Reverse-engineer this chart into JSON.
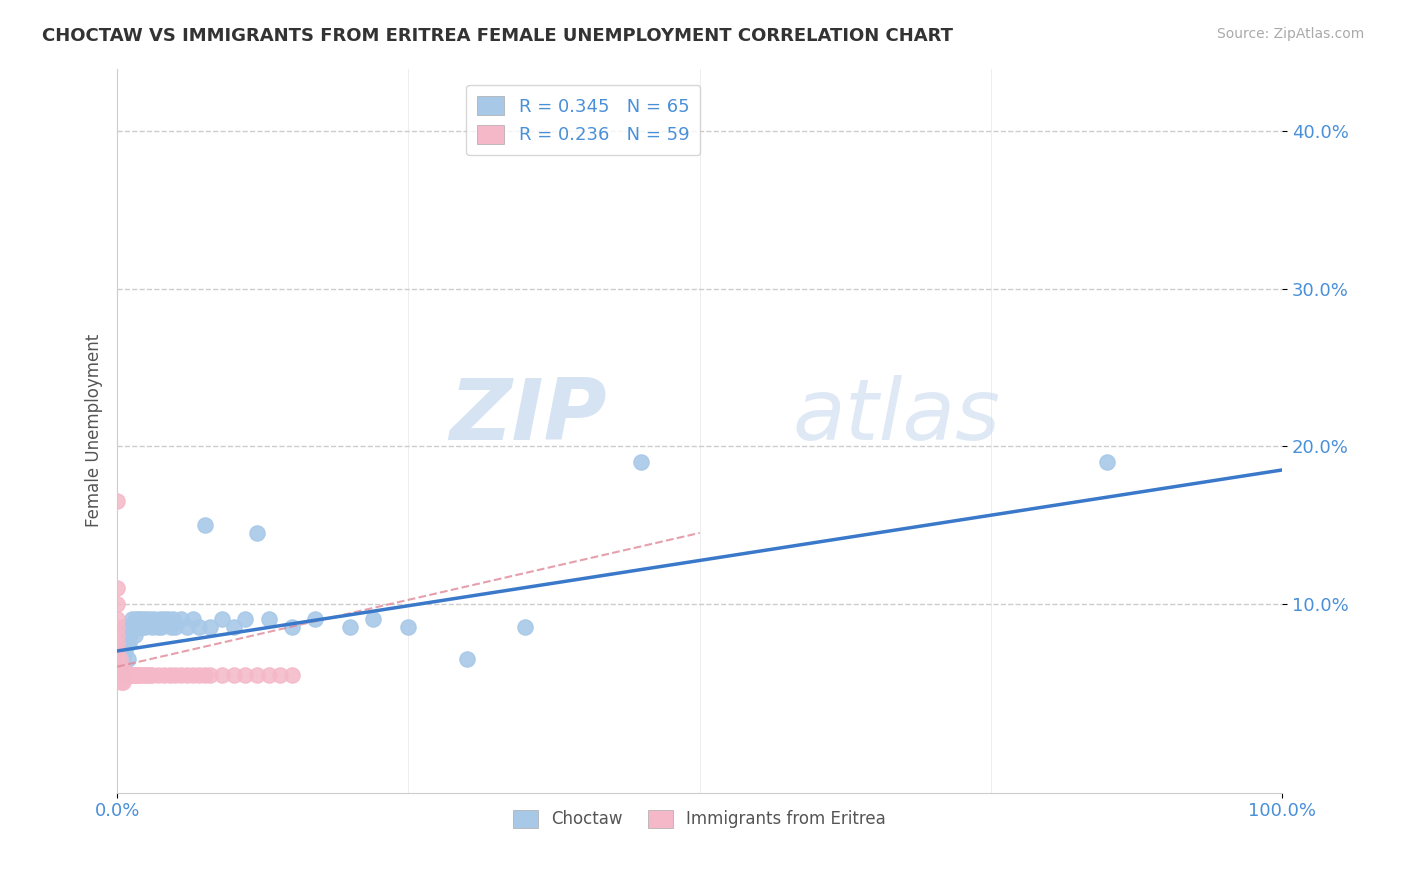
{
  "title": "CHOCTAW VS IMMIGRANTS FROM ERITREA FEMALE UNEMPLOYMENT CORRELATION CHART",
  "source": "Source: ZipAtlas.com",
  "ylabel": "Female Unemployment",
  "xmin": 0.0,
  "xmax": 1.0,
  "ymin": -0.02,
  "ymax": 0.44,
  "choctaw_R": 0.345,
  "choctaw_N": 65,
  "eritrea_R": 0.236,
  "eritrea_N": 59,
  "choctaw_color": "#a8c8e8",
  "eritrea_color": "#f4b8c8",
  "choctaw_line_color": "#3a78c9",
  "eritrea_line_color": "#e08898",
  "background_color": "#ffffff",
  "watermark_zip": "ZIP",
  "watermark_atlas": "atlas",
  "legend_label_1": "Choctaw",
  "legend_label_2": "Immigrants from Eritrea",
  "choctaw_x": [
    0.0,
    0.001,
    0.001,
    0.002,
    0.003,
    0.003,
    0.004,
    0.005,
    0.005,
    0.006,
    0.006,
    0.007,
    0.008,
    0.009,
    0.009,
    0.01,
    0.01,
    0.011,
    0.012,
    0.013,
    0.014,
    0.015,
    0.016,
    0.017,
    0.018,
    0.019,
    0.02,
    0.021,
    0.022,
    0.024,
    0.025,
    0.027,
    0.028,
    0.03,
    0.032,
    0.033,
    0.035,
    0.037,
    0.038,
    0.04,
    0.042,
    0.044,
    0.046,
    0.048,
    0.05,
    0.055,
    0.06,
    0.065,
    0.07,
    0.075,
    0.08,
    0.09,
    0.1,
    0.11,
    0.12,
    0.13,
    0.15,
    0.17,
    0.2,
    0.22,
    0.25,
    0.3,
    0.35,
    0.45,
    0.85
  ],
  "choctaw_y": [
    0.055,
    0.055,
    0.065,
    0.06,
    0.055,
    0.07,
    0.065,
    0.055,
    0.065,
    0.075,
    0.085,
    0.07,
    0.075,
    0.065,
    0.08,
    0.075,
    0.085,
    0.08,
    0.085,
    0.09,
    0.085,
    0.08,
    0.09,
    0.085,
    0.09,
    0.085,
    0.09,
    0.085,
    0.09,
    0.085,
    0.09,
    0.088,
    0.09,
    0.085,
    0.09,
    0.088,
    0.085,
    0.09,
    0.085,
    0.09,
    0.088,
    0.09,
    0.085,
    0.09,
    0.085,
    0.09,
    0.085,
    0.09,
    0.085,
    0.15,
    0.085,
    0.09,
    0.085,
    0.09,
    0.145,
    0.09,
    0.085,
    0.09,
    0.085,
    0.09,
    0.085,
    0.065,
    0.085,
    0.19,
    0.19
  ],
  "eritrea_x": [
    0.0,
    0.0,
    0.0,
    0.0,
    0.0,
    0.0,
    0.0,
    0.0,
    0.0,
    0.0,
    0.0,
    0.001,
    0.001,
    0.001,
    0.002,
    0.002,
    0.003,
    0.003,
    0.004,
    0.004,
    0.005,
    0.005,
    0.006,
    0.007,
    0.008,
    0.009,
    0.01,
    0.011,
    0.012,
    0.013,
    0.014,
    0.015,
    0.016,
    0.017,
    0.018,
    0.019,
    0.02,
    0.022,
    0.024,
    0.026,
    0.028,
    0.03,
    0.035,
    0.04,
    0.045,
    0.05,
    0.055,
    0.06,
    0.065,
    0.07,
    0.075,
    0.08,
    0.09,
    0.1,
    0.11,
    0.12,
    0.13,
    0.14,
    0.15
  ],
  "eritrea_y": [
    0.055,
    0.06,
    0.065,
    0.07,
    0.075,
    0.08,
    0.085,
    0.09,
    0.1,
    0.11,
    0.165,
    0.055,
    0.06,
    0.065,
    0.055,
    0.065,
    0.05,
    0.06,
    0.055,
    0.06,
    0.05,
    0.055,
    0.055,
    0.055,
    0.055,
    0.055,
    0.055,
    0.055,
    0.055,
    0.055,
    0.055,
    0.055,
    0.055,
    0.055,
    0.055,
    0.055,
    0.055,
    0.055,
    0.055,
    0.055,
    0.055,
    0.055,
    0.055,
    0.055,
    0.055,
    0.055,
    0.055,
    0.055,
    0.055,
    0.055,
    0.055,
    0.055,
    0.055,
    0.055,
    0.055,
    0.055,
    0.055,
    0.055,
    0.055
  ],
  "choctaw_trend": [
    0.07,
    0.185
  ],
  "eritrea_trend_x": [
    0.0,
    0.5
  ],
  "eritrea_trend_y": [
    0.06,
    0.145
  ]
}
